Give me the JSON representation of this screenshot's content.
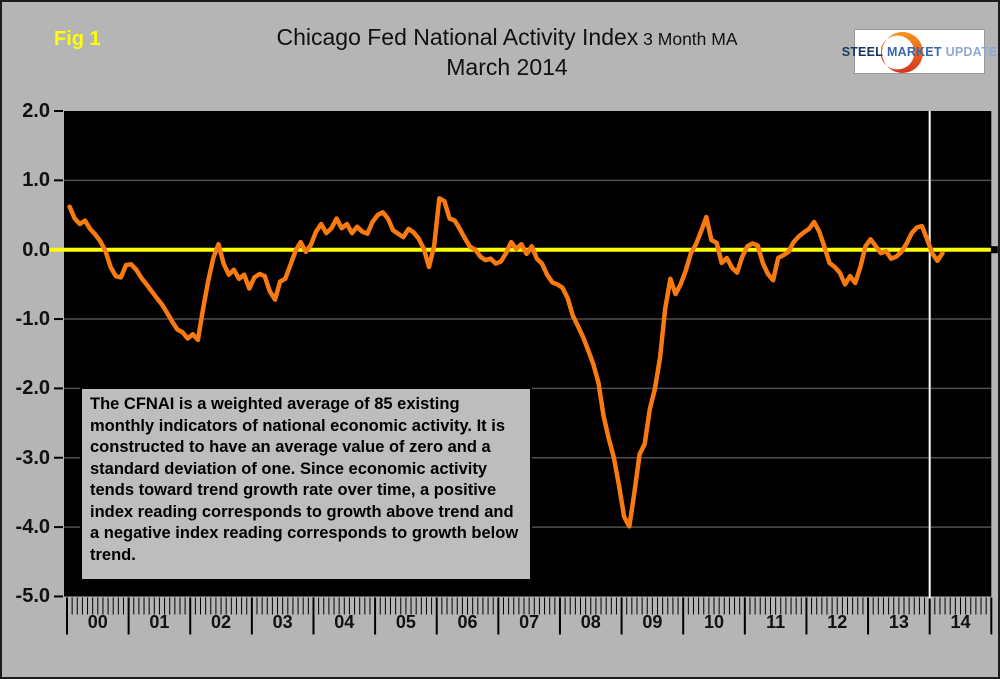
{
  "header": {
    "fig_label": "Fig 1",
    "title_main": "Chicago Fed National Activity Index",
    "title_suffix": " 3 Month MA",
    "title_sub": "March 2014"
  },
  "logo": {
    "word1": "STEEL",
    "word2": "MARKET",
    "word3": "UPDATE"
  },
  "annotation": {
    "text": "The CFNAI is a weighted average of 85 existing monthly indicators of national economic activity. It is constructed to have an average value of zero and a standard deviation of one. Since economic activity tends toward trend growth rate over time, a positive index reading corresponds to growth above trend and a negative index reading corresponds to growth below trend."
  },
  "colors": {
    "background": "#b5b5b5",
    "plot_background": "#000000",
    "series_line": "#F87A10",
    "zero_line": "#FFFF00",
    "grid_line": "#4f4f4f",
    "marker_line": "#FFFFFF",
    "fig_label": "#FFFF00",
    "tick": "#000000",
    "logo_crescent_top": "#F7941E",
    "logo_crescent_bottom": "#D5341F",
    "logo_word1": "#17375E",
    "logo_word2": "#3A66AD",
    "logo_word3": "#8FA8D0"
  },
  "chart_data": {
    "type": "line",
    "title": "Chicago Fed National Activity Index 3 Month MA - March 2014",
    "xlabel": "",
    "ylabel": "",
    "ylim": [
      -5.0,
      2.0
    ],
    "grid": "horizontal",
    "legend": "none",
    "y_tick_values": [
      2.0,
      1.0,
      0.0,
      -1.0,
      -2.0,
      -3.0,
      -4.0,
      -5.0
    ],
    "y_tick_labels": [
      "2.0",
      "1.0",
      "0.0",
      "-1.0",
      "-2.0",
      "-3.0",
      "-4.0",
      "-5.0"
    ],
    "x_tick_labels": [
      "00",
      "01",
      "02",
      "03",
      "04",
      "05",
      "06",
      "07",
      "08",
      "09",
      "10",
      "11",
      "12",
      "13",
      "14"
    ],
    "x_start": {
      "year": 2000,
      "month": 1
    },
    "x_end": {
      "year": 2014,
      "month": 3
    },
    "zero_reference_line": 0.0,
    "vertical_marker_at_year": 2014,
    "series": [
      {
        "name": "CFNAI 3-month moving average",
        "frequency": "monthly",
        "monthly_values": [
          0.62,
          0.45,
          0.37,
          0.42,
          0.3,
          0.22,
          0.12,
          -0.02,
          -0.25,
          -0.38,
          -0.4,
          -0.22,
          -0.21,
          -0.29,
          -0.41,
          -0.5,
          -0.6,
          -0.7,
          -0.79,
          -0.91,
          -1.04,
          -1.15,
          -1.19,
          -1.28,
          -1.22,
          -1.3,
          -0.85,
          -0.45,
          -0.12,
          0.08,
          -0.2,
          -0.36,
          -0.29,
          -0.42,
          -0.36,
          -0.56,
          -0.4,
          -0.35,
          -0.38,
          -0.6,
          -0.72,
          -0.46,
          -0.42,
          -0.22,
          -0.02,
          0.11,
          -0.03,
          0.07,
          0.26,
          0.37,
          0.24,
          0.31,
          0.45,
          0.31,
          0.37,
          0.24,
          0.33,
          0.26,
          0.23,
          0.4,
          0.5,
          0.54,
          0.45,
          0.28,
          0.23,
          0.18,
          0.3,
          0.25,
          0.16,
          0.01,
          -0.25,
          0.06,
          0.74,
          0.7,
          0.45,
          0.42,
          0.3,
          0.16,
          0.04,
          0.0,
          -0.1,
          -0.15,
          -0.13,
          -0.2,
          -0.17,
          -0.05,
          0.11,
          0.01,
          0.08,
          -0.06,
          0.05,
          -0.13,
          -0.2,
          -0.36,
          -0.47,
          -0.5,
          -0.55,
          -0.7,
          -0.95,
          -1.1,
          -1.26,
          -1.45,
          -1.65,
          -1.92,
          -2.4,
          -2.72,
          -3.0,
          -3.4,
          -3.85,
          -3.99,
          -3.5,
          -2.95,
          -2.8,
          -2.3,
          -2.0,
          -1.55,
          -0.85,
          -0.42,
          -0.64,
          -0.5,
          -0.3,
          -0.05,
          0.08,
          0.27,
          0.47,
          0.14,
          0.1,
          -0.19,
          -0.12,
          -0.26,
          -0.33,
          -0.1,
          0.05,
          0.09,
          0.06,
          -0.19,
          -0.35,
          -0.44,
          -0.12,
          -0.08,
          -0.03,
          0.11,
          0.19,
          0.25,
          0.3,
          0.4,
          0.26,
          0.04,
          -0.19,
          -0.25,
          -0.33,
          -0.5,
          -0.38,
          -0.48,
          -0.25,
          0.05,
          0.15,
          0.05,
          -0.05,
          -0.02,
          -0.13,
          -0.1,
          -0.03,
          0.09,
          0.24,
          0.32,
          0.34,
          0.15,
          -0.05,
          -0.16,
          -0.05
        ]
      }
    ]
  }
}
